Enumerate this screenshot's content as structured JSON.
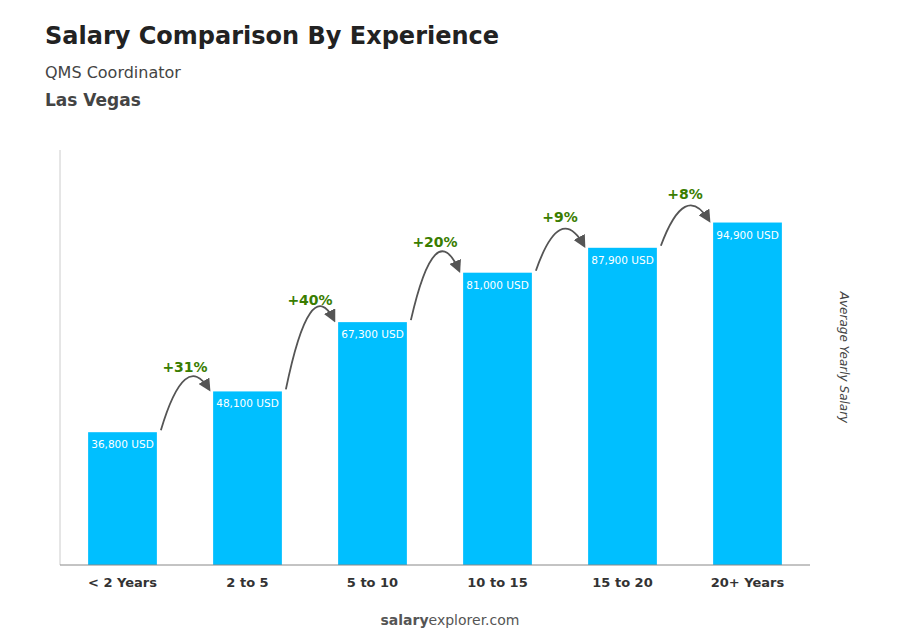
{
  "chart_data": {
    "type": "bar",
    "title": "Salary Comparison By Experience",
    "subtitle": [
      "QMS Coordinator",
      "Las Vegas"
    ],
    "categories": [
      "< 2 Years",
      "2 to 5",
      "5 to 10",
      "10 to 15",
      "15 to 20",
      "20+ Years"
    ],
    "values": [
      36800,
      48100,
      67300,
      81000,
      87900,
      94900
    ],
    "value_labels": [
      "36,800 USD",
      "48,100 USD",
      "67,300 USD",
      "81,000 USD",
      "87,900 USD",
      "94,900 USD"
    ],
    "data_labels": true,
    "annotations": [
      "+31%",
      "+40%",
      "+20%",
      "+9%",
      "+8%"
    ],
    "color": "#00BFFF",
    "ylabel": "Average Yearly Salary",
    "ylim": [
      0,
      115000
    ],
    "tick_labels": "x",
    "grid": false,
    "watermark": [
      "salary",
      "explorer.com"
    ]
  }
}
